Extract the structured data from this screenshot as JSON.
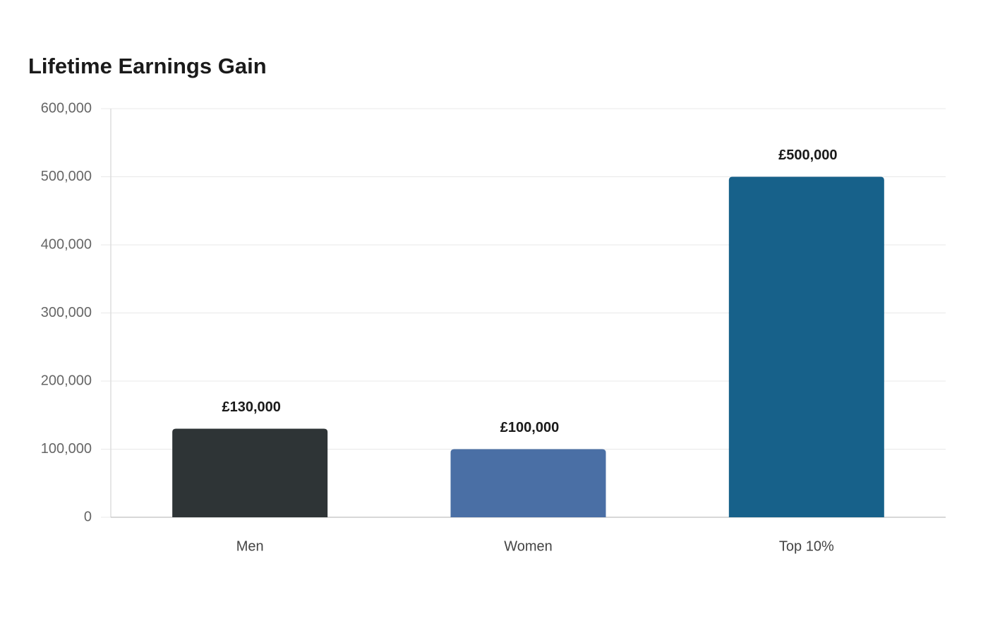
{
  "chart_data": {
    "type": "bar",
    "title": "Lifetime Earnings Gain",
    "categories": [
      "Men",
      "Women",
      "Top 10%"
    ],
    "values": [
      130000,
      100000,
      500000
    ],
    "value_labels": [
      "£130,000",
      "£100,000",
      "£500,000"
    ],
    "colors": [
      "#2e3436",
      "#4a6fa5",
      "#17618a"
    ],
    "ylim": [
      0,
      600000
    ],
    "yticks": [
      0,
      {
        "value": 100000,
        "label": "100,000"
      },
      {
        "value": 200000,
        "label": "200,000"
      },
      {
        "value": 300000,
        "label": "300,000"
      },
      {
        "value": 400000,
        "label": "400,000"
      },
      {
        "value": 500000,
        "label": "500,000"
      },
      {
        "value": 600000,
        "label": "600,000"
      }
    ],
    "grid": true
  }
}
